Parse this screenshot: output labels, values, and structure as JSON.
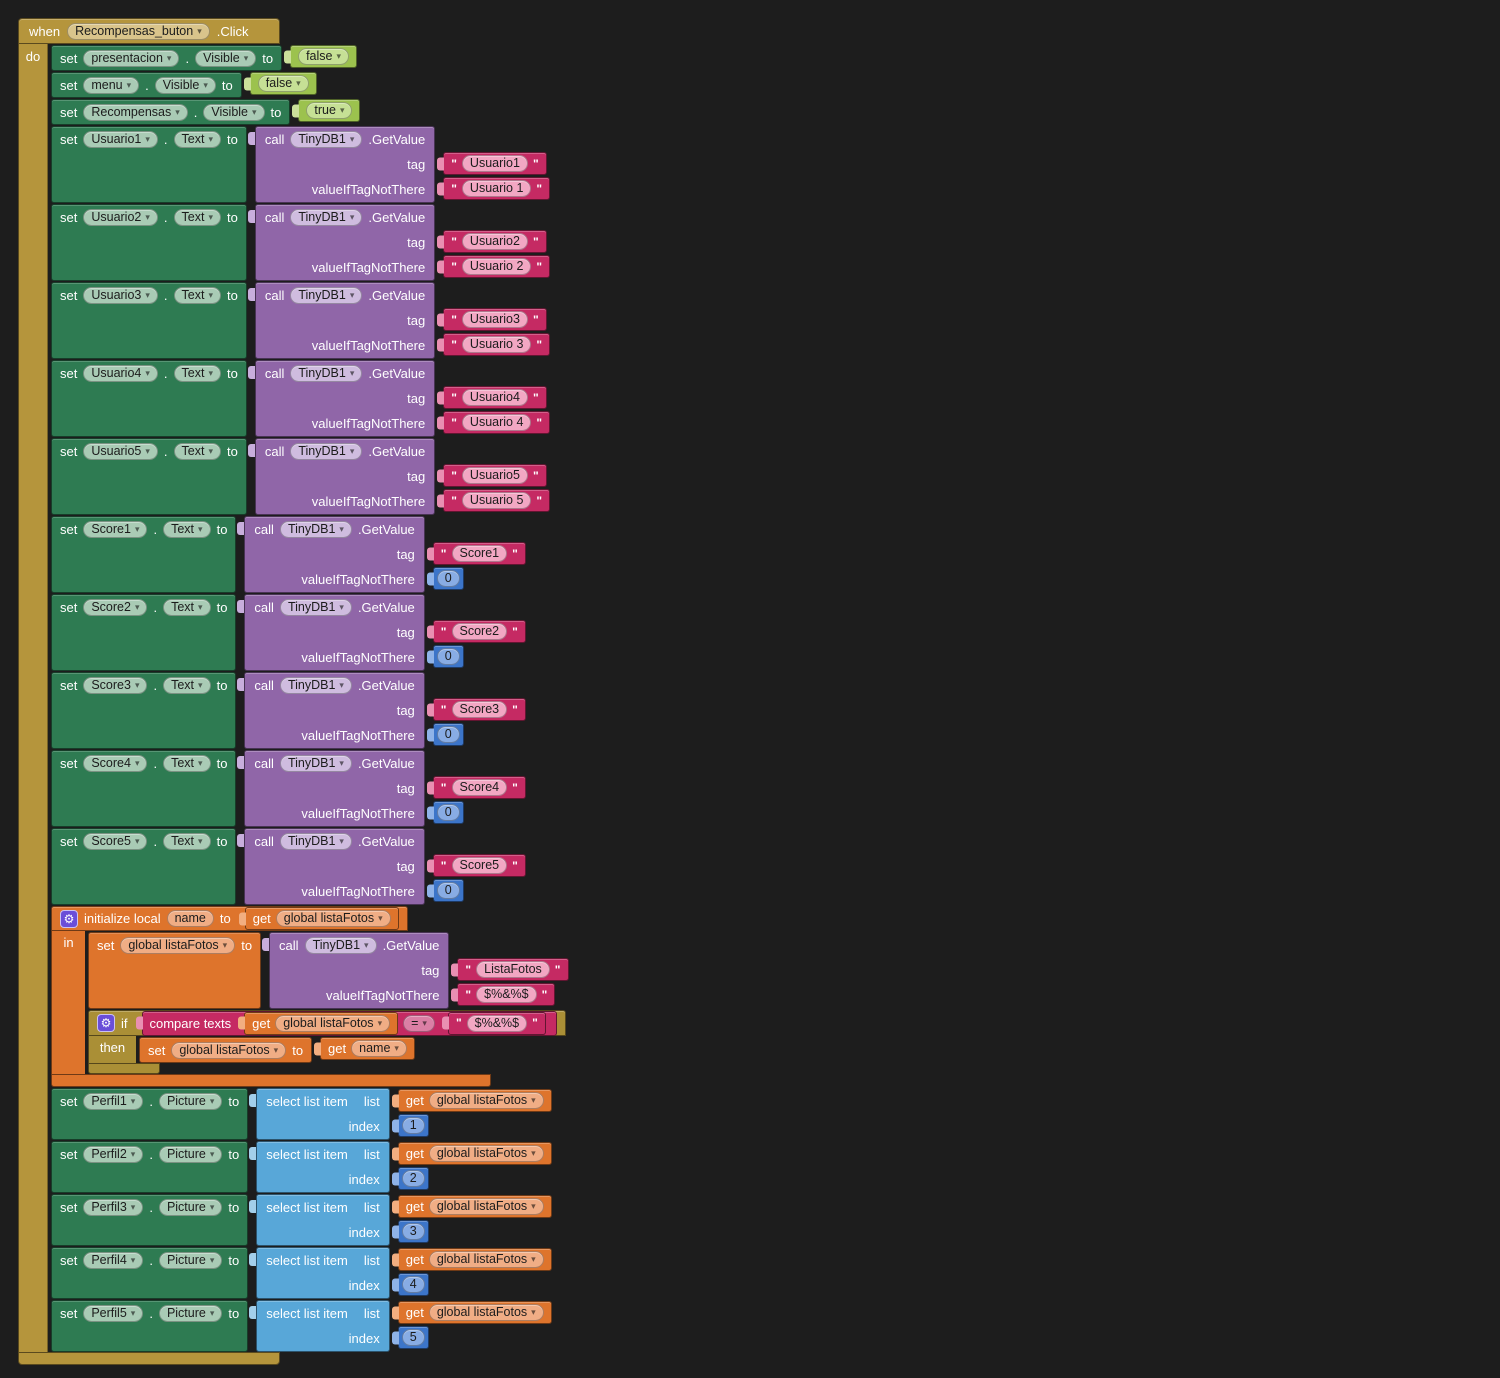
{
  "canvas": {
    "background": "#1d1d1d"
  },
  "colors": {
    "event_gold": "#B5953C",
    "control_gold": "#AA8F36",
    "setter_green": "#2E7B52",
    "method_purple": "#9066A8",
    "text_pink": "#C52A63",
    "logic_green": "#9CC24E",
    "math_blue": "#3C75C9",
    "list_blue": "#58A7D8",
    "var_orange": "#DE742C",
    "gear_blue": "#6A4ED8"
  },
  "labels": {
    "when": "when",
    "do": "do",
    "set": "set",
    "dot": ".",
    "to": "to",
    "call": "call",
    "tag": "tag",
    "value_if": "valueIfTagNotThere",
    "get": "get",
    "in": "in",
    "if": "if",
    "then": "then",
    "initialize_local": "initialize local",
    "compare_texts": "compare texts",
    "select_list_item": "select list item",
    "list": "list",
    "index": "index",
    "click": ".Click",
    "getvalue": ".GetValue"
  },
  "event": {
    "component": "Recompensas_buton"
  },
  "tinydb": "TinyDB1",
  "visibility_setters": [
    {
      "component": "presentacion",
      "property": "Visible",
      "value": "false"
    },
    {
      "component": "menu",
      "property": "Visible",
      "value": "false"
    },
    {
      "component": "Recompensas",
      "property": "Visible",
      "value": "true"
    }
  ],
  "usuario_setters": [
    {
      "component": "Usuario1",
      "property": "Text",
      "tag": "Usuario1",
      "fallback_text": "Usuario 1"
    },
    {
      "component": "Usuario2",
      "property": "Text",
      "tag": "Usuario2",
      "fallback_text": "Usuario 2"
    },
    {
      "component": "Usuario3",
      "property": "Text",
      "tag": "Usuario3",
      "fallback_text": "Usuario 3"
    },
    {
      "component": "Usuario4",
      "property": "Text",
      "tag": "Usuario4",
      "fallback_text": "Usuario 4"
    },
    {
      "component": "Usuario5",
      "property": "Text",
      "tag": "Usuario5",
      "fallback_text": "Usuario 5"
    }
  ],
  "score_setters": [
    {
      "component": "Score1",
      "property": "Text",
      "tag": "Score1",
      "fallback_number": "0"
    },
    {
      "component": "Score2",
      "property": "Text",
      "tag": "Score2",
      "fallback_number": "0"
    },
    {
      "component": "Score3",
      "property": "Text",
      "tag": "Score3",
      "fallback_number": "0"
    },
    {
      "component": "Score4",
      "property": "Text",
      "tag": "Score4",
      "fallback_number": "0"
    },
    {
      "component": "Score5",
      "property": "Text",
      "tag": "Score5",
      "fallback_number": "0"
    }
  ],
  "local_init": {
    "name": "name",
    "to_get": "global listaFotos",
    "body_set": {
      "target": "global listaFotos",
      "tag": "ListaFotos",
      "fallback_text": "$%&%$"
    },
    "if": {
      "left_get": "global listaFotos",
      "operator": "=",
      "right_text": "$%&%$",
      "then_set": {
        "target": "global listaFotos",
        "get": "name"
      }
    }
  },
  "picture_setters": [
    {
      "component": "Perfil1",
      "property": "Picture",
      "list_get": "global listaFotos",
      "index": "1"
    },
    {
      "component": "Perfil2",
      "property": "Picture",
      "list_get": "global listaFotos",
      "index": "2"
    },
    {
      "component": "Perfil3",
      "property": "Picture",
      "list_get": "global listaFotos",
      "index": "3"
    },
    {
      "component": "Perfil4",
      "property": "Picture",
      "list_get": "global listaFotos",
      "index": "4"
    },
    {
      "component": "Perfil5",
      "property": "Picture",
      "list_get": "global listaFotos",
      "index": "5"
    }
  ]
}
